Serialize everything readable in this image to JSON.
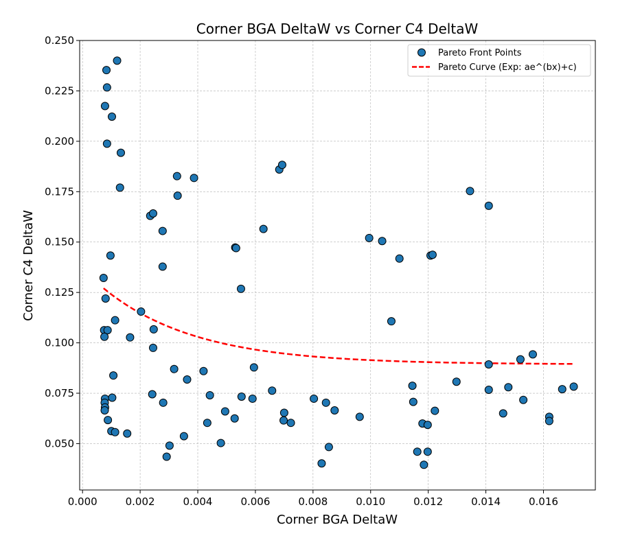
{
  "chart_data": {
    "type": "scatter",
    "title": "Corner BGA DeltaW vs Corner C4 DeltaW",
    "xlabel": "Corner BGA DeltaW",
    "ylabel": "Corner C4 DeltaW",
    "xlim": [
      -0.0001,
      0.0178
    ],
    "ylim": [
      0.027,
      0.25
    ],
    "x_ticks": [
      0.0,
      0.002,
      0.004,
      0.006,
      0.008,
      0.01,
      0.012,
      0.014,
      0.016
    ],
    "x_tick_labels": [
      "0.000",
      "0.002",
      "0.004",
      "0.006",
      "0.008",
      "0.010",
      "0.012",
      "0.014",
      "0.016"
    ],
    "y_ticks": [
      0.05,
      0.075,
      0.1,
      0.125,
      0.15,
      0.175,
      0.2,
      0.225,
      0.25
    ],
    "y_tick_labels": [
      "0.050",
      "0.075",
      "0.100",
      "0.125",
      "0.150",
      "0.175",
      "0.200",
      "0.225",
      "0.250"
    ],
    "grid": true,
    "legend_position": "top-right",
    "series": [
      {
        "name": "Pareto Front Points",
        "kind": "scatter",
        "color": "#1f77b4",
        "edge_color": "#000000",
        "points": [
          [
            0.0012,
            0.24
          ],
          [
            0.00083,
            0.2353
          ],
          [
            0.00085,
            0.2267
          ],
          [
            0.00078,
            0.2175
          ],
          [
            0.00102,
            0.2122
          ],
          [
            0.00085,
            0.1988
          ],
          [
            0.00133,
            0.1943
          ],
          [
            0.0013,
            0.177
          ],
          [
            0.00235,
            0.163
          ],
          [
            0.00245,
            0.1642
          ],
          [
            0.00278,
            0.1555
          ],
          [
            0.00328,
            0.1827
          ],
          [
            0.00387,
            0.1818
          ],
          [
            0.0033,
            0.173
          ],
          [
            0.00097,
            0.1433
          ],
          [
            0.00073,
            0.1322
          ],
          [
            0.00278,
            0.1378
          ],
          [
            0.0008,
            0.122
          ],
          [
            0.00113,
            0.1112
          ],
          [
            0.00203,
            0.1155
          ],
          [
            0.00075,
            0.1063
          ],
          [
            0.00087,
            0.1063
          ],
          [
            0.00076,
            0.103
          ],
          [
            0.00165,
            0.1027
          ],
          [
            0.00247,
            0.1067
          ],
          [
            0.00245,
            0.0975
          ],
          [
            0.00107,
            0.0838
          ],
          [
            0.00318,
            0.087
          ],
          [
            0.00363,
            0.0818
          ],
          [
            0.0042,
            0.086
          ],
          [
            0.00078,
            0.0723
          ],
          [
            0.00103,
            0.0728
          ],
          [
            0.00077,
            0.0703
          ],
          [
            0.00078,
            0.068
          ],
          [
            0.00077,
            0.0665
          ],
          [
            0.00088,
            0.0617
          ],
          [
            0.001,
            0.0562
          ],
          [
            0.00113,
            0.0557
          ],
          [
            0.00155,
            0.055
          ],
          [
            0.00242,
            0.0745
          ],
          [
            0.0028,
            0.0703
          ],
          [
            0.00442,
            0.074
          ],
          [
            0.00433,
            0.0603
          ],
          [
            0.00352,
            0.0537
          ],
          [
            0.00302,
            0.049
          ],
          [
            0.00292,
            0.0435
          ],
          [
            0.0048,
            0.0503
          ],
          [
            0.00495,
            0.066
          ],
          [
            0.00528,
            0.0625
          ],
          [
            0.00552,
            0.0733
          ],
          [
            0.0059,
            0.0723
          ],
          [
            0.00595,
            0.0878
          ],
          [
            0.0053,
            0.1473
          ],
          [
            0.00533,
            0.147
          ],
          [
            0.0055,
            0.1268
          ],
          [
            0.00628,
            0.1565
          ],
          [
            0.00683,
            0.186
          ],
          [
            0.00693,
            0.1883
          ],
          [
            0.00658,
            0.0763
          ],
          [
            0.007,
            0.0653
          ],
          [
            0.00698,
            0.0615
          ],
          [
            0.00723,
            0.0603
          ],
          [
            0.00803,
            0.0723
          ],
          [
            0.0083,
            0.0402
          ],
          [
            0.00845,
            0.0703
          ],
          [
            0.00855,
            0.0483
          ],
          [
            0.00875,
            0.0665
          ],
          [
            0.00962,
            0.0633
          ],
          [
            0.00995,
            0.152
          ],
          [
            0.0104,
            0.1505
          ],
          [
            0.01072,
            0.1107
          ],
          [
            0.011,
            0.1418
          ],
          [
            0.01208,
            0.1433
          ],
          [
            0.01215,
            0.1437
          ],
          [
            0.01145,
            0.0787
          ],
          [
            0.01148,
            0.0707
          ],
          [
            0.01223,
            0.0663
          ],
          [
            0.0118,
            0.06
          ],
          [
            0.01198,
            0.0593
          ],
          [
            0.01162,
            0.046
          ],
          [
            0.01198,
            0.046
          ],
          [
            0.01185,
            0.0395
          ],
          [
            0.01298,
            0.0807
          ],
          [
            0.01345,
            0.1753
          ],
          [
            0.0141,
            0.168
          ],
          [
            0.0141,
            0.0893
          ],
          [
            0.0141,
            0.0767
          ],
          [
            0.01478,
            0.078
          ],
          [
            0.0146,
            0.065
          ],
          [
            0.0152,
            0.0918
          ],
          [
            0.0153,
            0.0717
          ],
          [
            0.01563,
            0.0943
          ],
          [
            0.0162,
            0.0633
          ],
          [
            0.0162,
            0.0612
          ],
          [
            0.01665,
            0.077
          ],
          [
            0.01705,
            0.0783
          ]
        ]
      },
      {
        "name": "Pareto Curve (Exp: ae^(bx)+c)",
        "kind": "line",
        "color": "#ff0000",
        "dash": "dashed",
        "a": 0.0474,
        "b": -311,
        "c": 0.0893,
        "x_range": [
          0.00073,
          0.01705
        ]
      }
    ]
  }
}
